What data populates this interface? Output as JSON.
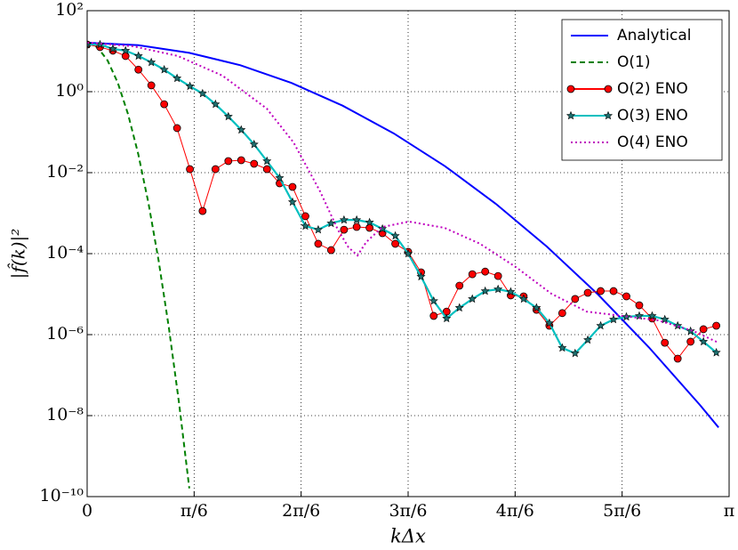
{
  "chart_data": {
    "type": "line",
    "xlabel": "kΔx",
    "ylabel": "|f̂(k)|²",
    "xlim": [
      0,
      3.1416
    ],
    "ylim": [
      1e-10,
      100
    ],
    "yscale": "log",
    "grid": true,
    "legend": "upper right",
    "xticks": [
      0,
      {
        "value": 0.5236,
        "label": "π/6"
      },
      {
        "value": 1.0472,
        "label": "2π/6"
      },
      {
        "value": 1.5708,
        "label": "3π/6"
      },
      {
        "value": 2.0944,
        "label": "4π/6"
      },
      {
        "value": 2.618,
        "label": "5π/6"
      },
      {
        "value": 3.1416,
        "label": "π"
      }
    ],
    "yticks": [
      {
        "value": 100,
        "label": "10²"
      },
      {
        "value": 1,
        "label": "10⁰"
      },
      {
        "value": 0.01,
        "label": "10⁻²"
      },
      {
        "value": 0.0001,
        "label": "10⁻⁴"
      },
      {
        "value": 1e-06,
        "label": "10⁻⁶"
      },
      {
        "value": 1e-08,
        "label": "10⁻⁸"
      },
      {
        "value": 1e-10,
        "label": "10⁻¹⁰"
      }
    ],
    "series": [
      {
        "name": "Analytical",
        "color": "#0000ff",
        "linestyle": "solid",
        "marker": "none",
        "x": [
          0,
          0.25,
          0.5,
          0.75,
          1.0,
          1.25,
          1.5,
          1.75,
          2.0,
          2.25,
          2.5,
          2.75,
          3.0,
          3.09
        ],
        "values": [
          16.2,
          14.1,
          9.1,
          4.5,
          1.64,
          0.452,
          0.0935,
          0.0146,
          0.0017,
          0.000149,
          9.8e-06,
          4.8e-07,
          1.8e-08,
          5.1e-09
        ]
      },
      {
        "name": "O(1)",
        "color": "#008000",
        "linestyle": "dashed",
        "marker": "none",
        "x": [
          0,
          0.05,
          0.1,
          0.15,
          0.2,
          0.25,
          0.3,
          0.35,
          0.4,
          0.45,
          0.5
        ],
        "values": [
          16.2,
          12.6,
          5.9,
          1.66,
          0.28,
          0.029,
          0.00178,
          6.6e-05,
          1.48e-06,
          2e-08,
          1.6e-10
        ]
      },
      {
        "name": "O(2) ENO",
        "color": "#ff0000",
        "linestyle": "solid",
        "marker": "circle",
        "x": [
          0,
          0.063,
          0.126,
          0.188,
          0.251,
          0.314,
          0.377,
          0.44,
          0.503,
          0.565,
          0.628,
          0.691,
          0.754,
          0.817,
          0.88,
          0.942,
          1.005,
          1.068,
          1.131,
          1.194,
          1.257,
          1.319,
          1.382,
          1.445,
          1.508,
          1.571,
          1.634,
          1.696,
          1.759,
          1.822,
          1.885,
          1.948,
          2.011,
          2.073,
          2.136,
          2.199,
          2.262,
          2.325,
          2.388,
          2.45,
          2.513,
          2.576,
          2.639,
          2.702,
          2.765,
          2.827,
          2.89,
          2.953,
          3.016,
          3.079
        ],
        "values": [
          14.6,
          12.6,
          10.3,
          7.6,
          3.5,
          1.43,
          0.49,
          0.126,
          0.0122,
          0.00113,
          0.0122,
          0.0193,
          0.0203,
          0.0166,
          0.0122,
          0.00545,
          0.00445,
          0.00084,
          0.000175,
          0.000122,
          0.00039,
          0.000456,
          0.000434,
          0.00032,
          0.000175,
          0.000111,
          3.45e-05,
          2.9e-06,
          3.7e-06,
          1.62e-05,
          3.1e-05,
          3.6e-05,
          2.8e-05,
          9.3e-06,
          8.8e-06,
          4.1e-06,
          1.66e-06,
          3.4e-06,
          7.6e-06,
          1.08e-05,
          1.19e-05,
          1.19e-05,
          8.8e-06,
          5.3e-06,
          2.5e-06,
          6.3e-07,
          2.55e-07,
          6.7e-07,
          1.36e-06,
          1.66e-06
        ]
      },
      {
        "name": "O(3) ENO",
        "color": "#00bfbf",
        "linestyle": "solid",
        "marker": "star",
        "x": [
          0,
          0.063,
          0.126,
          0.188,
          0.251,
          0.314,
          0.377,
          0.44,
          0.503,
          0.565,
          0.628,
          0.691,
          0.754,
          0.817,
          0.88,
          0.942,
          1.005,
          1.068,
          1.131,
          1.194,
          1.257,
          1.319,
          1.382,
          1.445,
          1.508,
          1.571,
          1.634,
          1.696,
          1.759,
          1.822,
          1.885,
          1.948,
          2.011,
          2.073,
          2.136,
          2.199,
          2.262,
          2.325,
          2.388,
          2.45,
          2.513,
          2.576,
          2.639,
          2.702,
          2.765,
          2.827,
          2.89,
          2.953,
          3.016,
          3.079
        ],
        "values": [
          14.6,
          14.6,
          11.4,
          10.3,
          7.6,
          5.3,
          3.5,
          2.14,
          1.36,
          0.9,
          0.49,
          0.243,
          0.114,
          0.05,
          0.0193,
          0.0074,
          0.00188,
          0.00048,
          0.00039,
          0.00056,
          0.00068,
          0.00068,
          0.00059,
          0.00041,
          0.000275,
          0.0001,
          2.7e-05,
          6.8e-06,
          2.5e-06,
          4.6e-06,
          7.6e-06,
          1.19e-05,
          1.32e-05,
          1.14e-05,
          7.6e-06,
          4.6e-06,
          1.93e-06,
          4.7e-07,
          3.45e-07,
          7.4e-07,
          1.66e-06,
          2.37e-06,
          2.75e-06,
          2.9e-06,
          2.9e-06,
          2.37e-06,
          1.66e-06,
          1.22e-06,
          6.7e-07,
          3.6e-07
        ]
      },
      {
        "name": "O(4) ENO",
        "color": "#bf00bf",
        "linestyle": "dotted",
        "marker": "none",
        "x": [
          0,
          0.226,
          0.444,
          0.662,
          0.879,
          1.01,
          1.14,
          1.227,
          1.279,
          1.323,
          1.366,
          1.445,
          1.575,
          1.749,
          1.923,
          2.097,
          2.271,
          2.445,
          2.619,
          2.794,
          2.968,
          3.09
        ],
        "values": [
          16.2,
          13.2,
          7.6,
          2.49,
          0.382,
          0.0558,
          0.00345,
          0.00039,
          0.000143,
          9e-05,
          0.000193,
          0.000456,
          0.000618,
          0.000434,
          0.000175,
          4.7e-05,
          1.03e-05,
          3.7e-06,
          2.9e-06,
          2.25e-06,
          1.22e-06,
          6.3e-07
        ]
      }
    ]
  }
}
